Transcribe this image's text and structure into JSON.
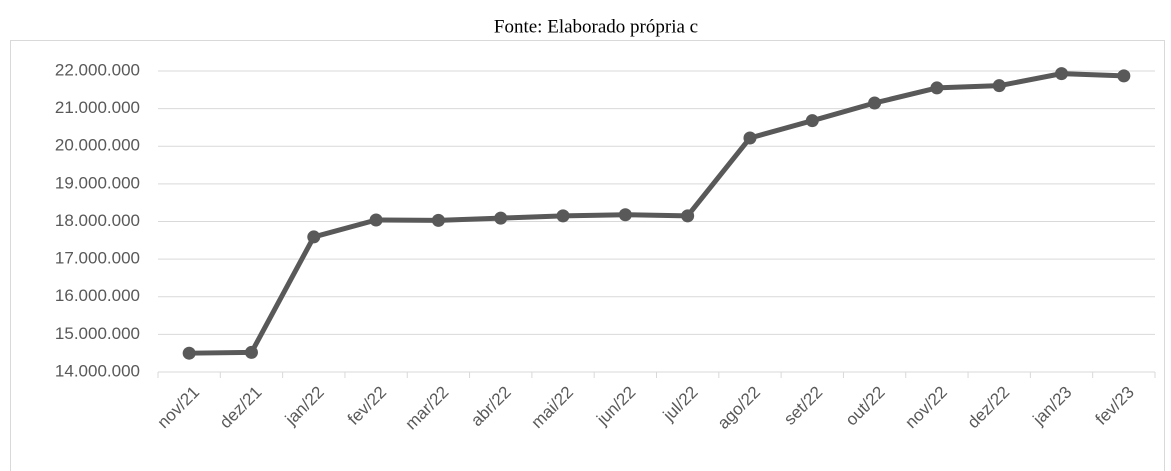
{
  "chart_data": {
    "type": "line",
    "title": "Fonte: Elaborado própria c",
    "categories": [
      "nov/21",
      "dez/21",
      "jan/22",
      "fev/22",
      "mar/22",
      "abr/22",
      "mai/22",
      "jun/22",
      "jul/22",
      "ago/22",
      "set/22",
      "out/22",
      "nov/22",
      "dez/22",
      "jan/23",
      "fev/23"
    ],
    "series": [
      {
        "color": "#595959",
        "values": [
          14500000,
          14520000,
          17590000,
          18040000,
          18030000,
          18090000,
          18150000,
          18180000,
          18150000,
          20220000,
          20680000,
          21150000,
          21550000,
          21610000,
          21930000,
          21870000
        ]
      }
    ],
    "ylim": [
      14000000,
      22000000
    ],
    "yticks": [
      {
        "value": 14000000,
        "label": "14.000.000"
      },
      {
        "value": 15000000,
        "label": "15.000.000"
      },
      {
        "value": 16000000,
        "label": "16.000.000"
      },
      {
        "value": 17000000,
        "label": "17.000.000"
      },
      {
        "value": 18000000,
        "label": "18.000.000"
      },
      {
        "value": 19000000,
        "label": "19.000.000"
      },
      {
        "value": 20000000,
        "label": "20.000.000"
      },
      {
        "value": 21000000,
        "label": "21.000.000"
      },
      {
        "value": 22000000,
        "label": "22.000.000"
      }
    ],
    "grid": true
  }
}
